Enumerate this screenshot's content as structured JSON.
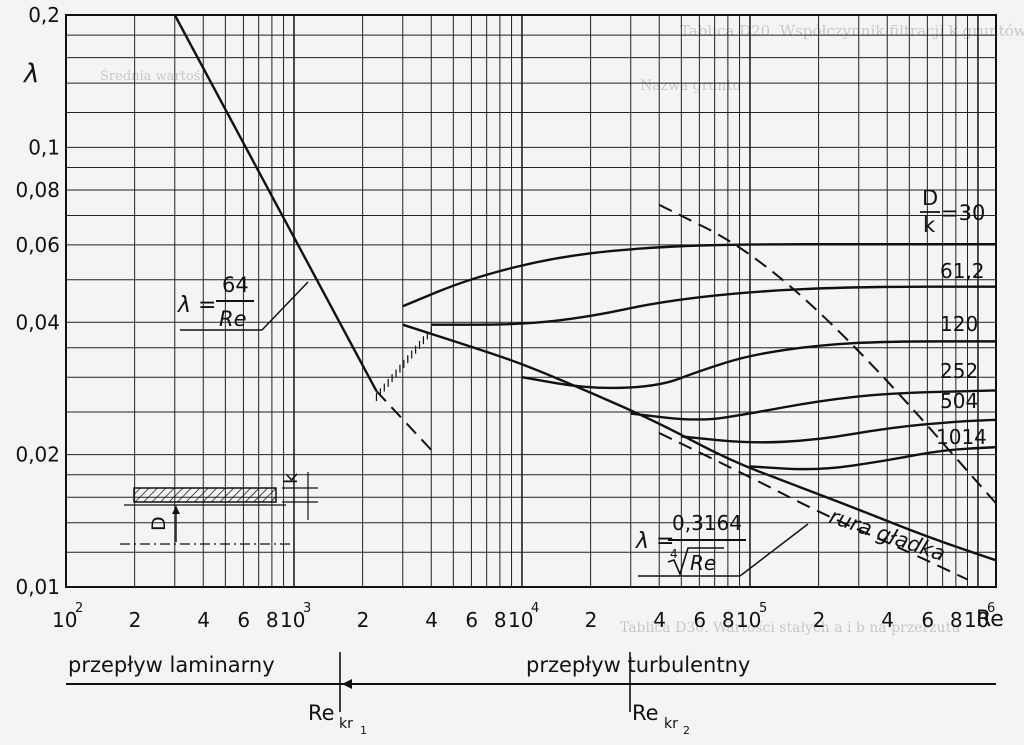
{
  "chart_data": {
    "type": "line",
    "xlabel": "Re",
    "ylabel": "λ",
    "x_scale": "log",
    "y_scale": "log",
    "xlim": [
      100,
      1200000
    ],
    "ylim": [
      0.01,
      0.2
    ],
    "x_ticks": [
      {
        "v": 100,
        "t": "10",
        "sup": "2"
      },
      {
        "v": 200,
        "t": "2"
      },
      {
        "v": 400,
        "t": "4"
      },
      {
        "v": 600,
        "t": "6"
      },
      {
        "v": 800,
        "t": "8"
      },
      {
        "v": 1000,
        "t": "10",
        "sup": "3"
      },
      {
        "v": 2000,
        "t": "2"
      },
      {
        "v": 4000,
        "t": "4"
      },
      {
        "v": 6000,
        "t": "6"
      },
      {
        "v": 8000,
        "t": "8"
      },
      {
        "v": 10000,
        "t": "10",
        "sup": "4"
      },
      {
        "v": 20000,
        "t": "2"
      },
      {
        "v": 40000,
        "t": "4"
      },
      {
        "v": 60000,
        "t": "6"
      },
      {
        "v": 80000,
        "t": "8"
      },
      {
        "v": 100000,
        "t": "10",
        "sup": "5"
      },
      {
        "v": 200000,
        "t": "2"
      },
      {
        "v": 400000,
        "t": "4"
      },
      {
        "v": 600000,
        "t": "6"
      },
      {
        "v": 800000,
        "t": "8"
      },
      {
        "v": 1000000,
        "t": "10",
        "sup": "6"
      }
    ],
    "y_ticks": [
      {
        "v": 0.01,
        "t": "0,01"
      },
      {
        "v": 0.02,
        "t": "0,02"
      },
      {
        "v": 0.04,
        "t": "0,04"
      },
      {
        "v": 0.06,
        "t": "0,06"
      },
      {
        "v": 0.08,
        "t": "0,08"
      },
      {
        "v": 0.1,
        "t": "0,1"
      },
      {
        "v": 0.2,
        "t": "0,2"
      }
    ],
    "series": [
      {
        "id": "laminar",
        "style": "solid",
        "x": [
          300,
          2300
        ],
        "y": [
          0.2,
          0.0279
        ]
      },
      {
        "id": "laminar-ext",
        "style": "dashed",
        "x": [
          2300,
          4000
        ],
        "y": [
          0.0279,
          0.0205
        ]
      },
      {
        "id": "smooth",
        "style": "solid",
        "x": [
          3000,
          6000,
          10000,
          20000,
          40000,
          80000,
          150000,
          300000,
          600000,
          1200000
        ],
        "y": [
          0.0395,
          0.0352,
          0.0322,
          0.0277,
          0.0236,
          0.0195,
          0.0172,
          0.015,
          0.013,
          0.0115
        ]
      },
      {
        "id": "blasius",
        "style": "dashed",
        "x": [
          40000,
          100000,
          200000,
          500000,
          900000
        ],
        "y": [
          0.0224,
          0.0178,
          0.0148,
          0.012,
          0.0104
        ]
      },
      {
        "id": "rough-asymptote",
        "style": "dashed",
        "x": [
          40000,
          100000,
          300000,
          1200000
        ],
        "y": [
          0.074,
          0.0585,
          0.035,
          0.0155
        ]
      },
      {
        "id": "D/k=30",
        "style": "solid",
        "x": [
          3000,
          6000,
          15000,
          40000,
          100000,
          300000,
          1200000
        ],
        "y": [
          0.0435,
          0.0505,
          0.0567,
          0.0595,
          0.0602,
          0.0602,
          0.0602
        ]
      },
      {
        "id": "D/k=61,2",
        "style": "solid",
        "x": [
          4000,
          10000,
          20000,
          40000,
          100000,
          300000,
          1200000
        ],
        "y": [
          0.0395,
          0.0395,
          0.0412,
          0.0445,
          0.047,
          0.0482,
          0.0482
        ]
      },
      {
        "id": "D/k=120",
        "style": "solid",
        "x": [
          10000,
          20000,
          40000,
          60000,
          100000,
          200000,
          400000,
          1200000
        ],
        "y": [
          0.03,
          0.0282,
          0.0286,
          0.031,
          0.0337,
          0.0355,
          0.0362,
          0.0362
        ]
      },
      {
        "id": "D/k=252",
        "style": "solid",
        "x": [
          30000,
          60000,
          100000,
          200000,
          400000,
          1200000
        ],
        "y": [
          0.0248,
          0.0238,
          0.0248,
          0.0265,
          0.0276,
          0.028
        ]
      },
      {
        "id": "D/k=504",
        "style": "solid",
        "x": [
          50000,
          100000,
          200000,
          400000,
          800000,
          1200000
        ],
        "y": [
          0.022,
          0.0212,
          0.0216,
          0.023,
          0.0238,
          0.024
        ]
      },
      {
        "id": "D/k=1014",
        "style": "solid",
        "x": [
          100000,
          200000,
          400000,
          700000,
          1200000
        ],
        "y": [
          0.0188,
          0.0184,
          0.0194,
          0.0205,
          0.0208
        ]
      }
    ],
    "hatch_region": {
      "x_from": 2300,
      "x_to": 4000
    },
    "ratio_labels": {
      "head_num": "D",
      "head_den": "k",
      "head_val": "=30",
      "items": [
        "61,2",
        "120",
        "252",
        "504",
        "1014"
      ]
    },
    "annotations": {
      "laminar_formula": {
        "lhs": "λ =",
        "num": "64",
        "den": "Re"
      },
      "blasius_formula": {
        "lhs": "λ =",
        "num": "0,3164",
        "den": "Re",
        "root_index": "4"
      },
      "smooth_pipe": "rura gładka",
      "pipe_D": "D",
      "pipe_k": "k"
    },
    "regime": {
      "laminar": "przepływ laminarny",
      "turbulent": "przepływ turbulentny",
      "re_kr1": "Re",
      "re_kr1_sub": "kr",
      "re_kr1_sub2": "1",
      "re_kr2": "Re",
      "re_kr2_sub": "kr",
      "re_kr2_sub2": "2"
    }
  },
  "background_text": [
    "Tablica D20. Współczynnik filtracji k gruntów",
    "Nazwa gruntu",
    "Średnia wartość",
    "Tablica D30. Wartości stałych a i b na przerzutu"
  ]
}
